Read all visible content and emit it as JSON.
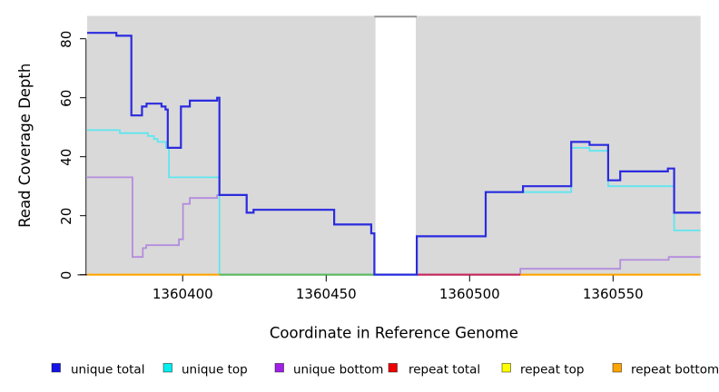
{
  "figure": {
    "page_bg": "#FFFFFF",
    "plot_bg": "#D9D9D9",
    "gap_top_border": "#8C8C8C"
  },
  "axes": {
    "x": {
      "title": "Coordinate in Reference Genome",
      "ticks": [
        "1360400",
        "1360450",
        "1360500",
        "1360550"
      ],
      "tick_coords": [
        1360400,
        1360450,
        1360500,
        1360550
      ],
      "domain": [
        1360366.7,
        1360580.5
      ]
    },
    "y": {
      "title": "Read Coverage Depth",
      "ticks": [
        "0",
        "20",
        "40",
        "60",
        "80"
      ],
      "tick_values": [
        0,
        20,
        40,
        60,
        80
      ],
      "domain": [
        0,
        87.8
      ]
    }
  },
  "legend": {
    "items": [
      {
        "label": "unique total",
        "color": "#1414E6"
      },
      {
        "label": "unique top",
        "color": "#00EEEE"
      },
      {
        "label": "unique bottom",
        "color": "#A21FE8"
      },
      {
        "label": "repeat total",
        "color": "#EE0000"
      },
      {
        "label": "repeat top",
        "color": "#FFFF00"
      },
      {
        "label": "repeat bottom",
        "color": "#FFA500"
      }
    ]
  },
  "chart_data": {
    "type": "line",
    "step": true,
    "title": "",
    "xlabel": "Coordinate in Reference Genome",
    "ylabel": "Read Coverage Depth",
    "xlim": [
      1360366.7,
      1360580.5
    ],
    "ylim": [
      0,
      87.8
    ],
    "grid": false,
    "legend_position": "bottom",
    "gap": {
      "from": 1360466.8,
      "to": 1360481.6
    },
    "series": [
      {
        "name": "unique bottom",
        "line_color": "#B48CDE",
        "line_width": 1.8,
        "steps": [
          [
            1360366.7,
            33
          ],
          [
            1360382.5,
            6
          ],
          [
            1360386.1,
            9
          ],
          [
            1360387.3,
            10
          ],
          [
            1360398.7,
            12
          ],
          [
            1360400.1,
            24
          ],
          [
            1360402.5,
            26
          ],
          [
            1360412.0,
            27
          ],
          [
            1360412.8,
            27
          ],
          [
            1360422.3,
            21
          ],
          [
            1360424.7,
            22
          ],
          [
            1360452.8,
            17
          ],
          [
            1360465.7,
            14
          ],
          [
            1360466.8,
            0
          ],
          [
            1360481.6,
            0
          ],
          [
            1360517.7,
            2
          ],
          [
            1360552.5,
            5
          ],
          [
            1360569.4,
            6
          ]
        ],
        "end": 1360580.5
      },
      {
        "name": "unique top",
        "line_color": "#5FE6EF",
        "line_width": 1.8,
        "steps": [
          [
            1360366.7,
            49
          ],
          [
            1360378.1,
            48
          ],
          [
            1360387.9,
            47
          ],
          [
            1360390.0,
            46
          ],
          [
            1360391.3,
            45
          ],
          [
            1360394.2,
            43
          ],
          [
            1360395.2,
            33
          ],
          [
            1360412.8,
            0
          ],
          [
            1360481.6,
            13
          ],
          [
            1360505.6,
            28
          ],
          [
            1360535.4,
            43
          ],
          [
            1360541.8,
            42
          ],
          [
            1360548.3,
            30
          ],
          [
            1360571.3,
            15
          ]
        ],
        "end": 1360580.5
      },
      {
        "name": "unique total",
        "line_color": "#2B2BDF",
        "line_width": 2.2,
        "steps": [
          [
            1360366.7,
            82
          ],
          [
            1360376.9,
            81
          ],
          [
            1360382.1,
            54
          ],
          [
            1360385.8,
            57
          ],
          [
            1360387.4,
            58
          ],
          [
            1360392.6,
            57
          ],
          [
            1360394.0,
            56
          ],
          [
            1360394.8,
            43
          ],
          [
            1360399.4,
            57
          ],
          [
            1360402.5,
            59
          ],
          [
            1360412.0,
            60
          ],
          [
            1360412.8,
            27
          ],
          [
            1360422.3,
            21
          ],
          [
            1360424.7,
            22
          ],
          [
            1360452.8,
            17
          ],
          [
            1360465.7,
            14
          ],
          [
            1360466.8,
            0
          ],
          [
            1360481.6,
            13
          ],
          [
            1360505.6,
            28
          ],
          [
            1360518.6,
            30
          ],
          [
            1360535.4,
            45
          ],
          [
            1360541.8,
            44
          ],
          [
            1360548.3,
            32
          ],
          [
            1360552.5,
            35
          ],
          [
            1360569.1,
            36
          ],
          [
            1360571.3,
            21
          ]
        ],
        "end": 1360580.5
      },
      {
        "name": "repeat total",
        "line_color": "#C62A5C",
        "line_width": 2.0,
        "steps": [
          [
            1360481.6,
            0
          ]
        ],
        "end": 1360517.7
      },
      {
        "name": "repeat top",
        "line_color": "#FFFF00",
        "line_width": 2.0,
        "steps": [],
        "end": 1360580.5
      },
      {
        "name": "repeat bottom",
        "line_color": "#FFA500",
        "line_width": 2.2,
        "steps": [
          [
            1360366.7,
            0
          ]
        ],
        "end": 1360580.5
      }
    ],
    "zero_line_segments": [
      {
        "from": 1360366.7,
        "to": 1360412.8,
        "color": "#FFA500"
      },
      {
        "from": 1360412.8,
        "to": 1360466.8,
        "color": "#5CB85C"
      },
      {
        "from": 1360481.6,
        "to": 1360517.7,
        "color": "#C62A5C"
      },
      {
        "from": 1360517.7,
        "to": 1360580.5,
        "color": "#FFA500"
      }
    ]
  }
}
